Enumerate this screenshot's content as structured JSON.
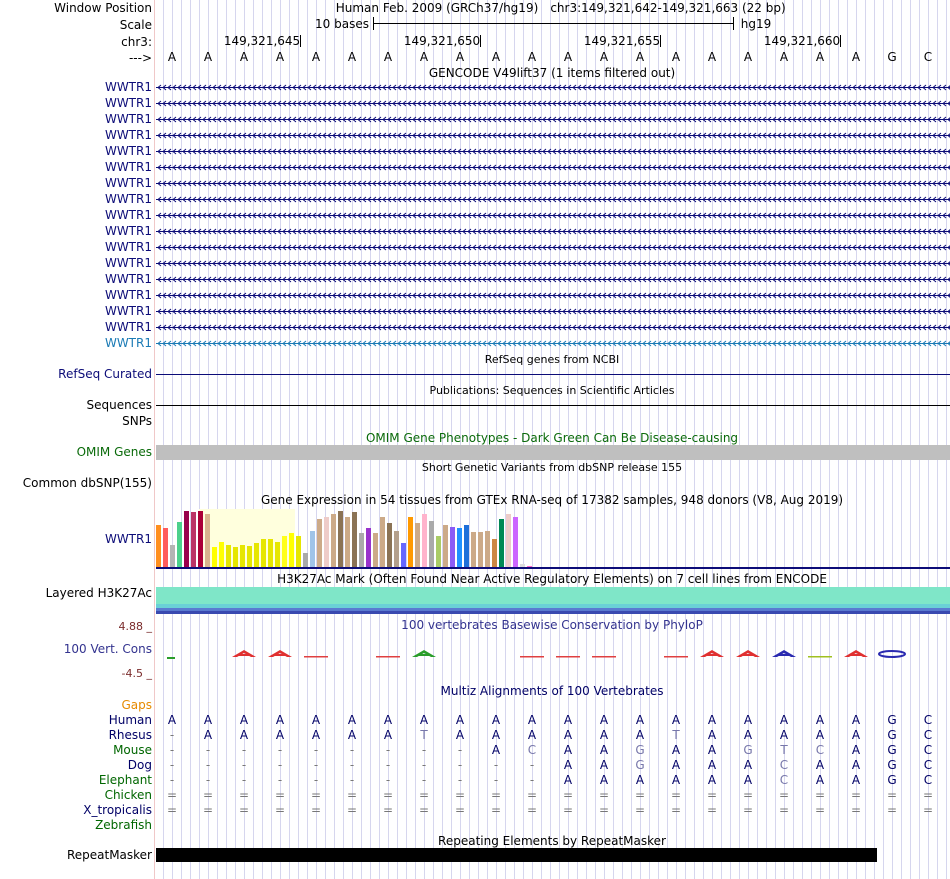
{
  "header": {
    "window_position_label": "Window Position",
    "scale_label": "Scale",
    "chrom_label": "chr3:",
    "strand_label": "--->",
    "assembly": "Human Feb. 2009 (GRCh37/hg19)",
    "position": "chr3:149,321,642-149,321,663 (22 bp)",
    "scale_text": "10 bases",
    "scale_db": "hg19",
    "coords": [
      "149,321,645",
      "149,321,650",
      "149,321,655",
      "149,321,660"
    ]
  },
  "bases": [
    "A",
    "A",
    "A",
    "A",
    "A",
    "A",
    "A",
    "A",
    "A",
    "A",
    "A",
    "A",
    "A",
    "A",
    "A",
    "A",
    "A",
    "A",
    "A",
    "A",
    "G",
    "C"
  ],
  "gencode": {
    "title": "GENCODE V49lift37 (1 items filtered out)",
    "gene": "WWTR1",
    "rows": 17,
    "row_color": "#0c0c78",
    "highlight_color": "#1a7ab5"
  },
  "refseq": {
    "title": "RefSeq genes from NCBI",
    "label": "RefSeq Curated",
    "color": "#0c0c78"
  },
  "pubs": {
    "title": "Publications: Sequences in Scientific Articles",
    "label1": "Sequences",
    "label2": "SNPs"
  },
  "omim": {
    "title": "OMIM Gene Phenotypes - Dark Green Can Be Disease-causing",
    "label": "OMIM Genes",
    "color": "#0a6a0a"
  },
  "dbsnp": {
    "title": "Short Genetic Variants from dbSNP release 155",
    "label": "Common dbSNP(155)"
  },
  "gtex": {
    "title": "Gene Expression in 54 tissues from GTEx RNA-seq of 17382 samples, 948 donors (V8, Aug 2019)",
    "label": "WWTR1",
    "bar_colors": [
      "#ff8f1e",
      "#ff5c5c",
      "#b4b4b4",
      "#4cd08c",
      "#99004c",
      "#bb3366",
      "#ab0037",
      "#d9b48d",
      "#ffff00",
      "#ffff00",
      "#e6e600",
      "#e6e600",
      "#e6e600",
      "#e6e600",
      "#e6e600",
      "#e6e600",
      "#e6e600",
      "#e6e600",
      "#ffff1a",
      "#ffff00",
      "#e6e600",
      "#aaaaaa",
      "#a0c4e8",
      "#ccaa88",
      "#eeccc9",
      "#ccaa88",
      "#8b7355",
      "#ccaa88",
      "#8b7355",
      "#aaaaaa",
      "#9933cc",
      "#ccaa88",
      "#ccaa88",
      "#8b7355",
      "#b4a08c",
      "#6666ff",
      "#ff9900",
      "#ccaa88",
      "#ffb3cc",
      "#aaaaaa",
      "#aacc66",
      "#ccaa88",
      "#8b5cf6",
      "#1e90ff",
      "#1e6fd9",
      "#ccaa88",
      "#ccaa88",
      "#ccaa88",
      "#cc8844",
      "#008855",
      "#eeccc9",
      "#cc66ff",
      "#dddddd",
      "#ff66cc"
    ],
    "bar_values": [
      0.75,
      0.7,
      0.4,
      0.8,
      1.0,
      0.98,
      1.0,
      0.95,
      0.35,
      0.45,
      0.4,
      0.35,
      0.4,
      0.38,
      0.42,
      0.5,
      0.5,
      0.45,
      0.55,
      0.6,
      0.55,
      0.25,
      0.65,
      0.85,
      0.9,
      0.95,
      1.0,
      0.9,
      0.98,
      0.6,
      0.7,
      0.6,
      0.9,
      0.78,
      0.65,
      0.42,
      0.9,
      0.78,
      0.95,
      0.82,
      0.55,
      0.75,
      0.72,
      0.7,
      0.75,
      0.62,
      0.62,
      0.65,
      0.5,
      0.85,
      0.95,
      0.9,
      0.05,
      0.02
    ]
  },
  "h3k27ac": {
    "title": "H3K27Ac Mark (Often Found Near Active Regulatory Elements) on 7 cell lines from ENCODE",
    "label": "Layered H3K27Ac",
    "colors": [
      "#7fe6c8",
      "#6ad0d6",
      "#5a7ad0",
      "#3a4ab0"
    ]
  },
  "conservation": {
    "title": "100 vertebrates Basewise Conservation by PhyloP",
    "label": "100 Vert. Cons",
    "ymax": "4.88 _",
    "ymin": "-4.5 _",
    "title_color": "#33338f"
  },
  "multiz": {
    "title": "Multiz Alignments of 100 Vertebrates",
    "gaps_label": "Gaps",
    "species": [
      {
        "name": "Human",
        "color": "#000066",
        "seq": [
          "A",
          "A",
          "A",
          "A",
          "A",
          "A",
          "A",
          "A",
          "A",
          "A",
          "A",
          "A",
          "A",
          "A",
          "A",
          "A",
          "A",
          "A",
          "A",
          "A",
          "G",
          "C"
        ]
      },
      {
        "name": "Rhesus",
        "color": "#000066",
        "seq": [
          "-",
          "A",
          "A",
          "A",
          "A",
          "A",
          "A",
          "T",
          "A",
          "A",
          "A",
          "A",
          "A",
          "A",
          "T",
          "A",
          "A",
          "A",
          "A",
          "A",
          "G",
          "C"
        ]
      },
      {
        "name": "Mouse",
        "color": "#006600",
        "seq": [
          "-",
          "-",
          "-",
          "-",
          "-",
          "-",
          "-",
          "-",
          "-",
          "A",
          "C",
          "A",
          "A",
          "G",
          "A",
          "A",
          "G",
          "T",
          "C",
          "A",
          "G",
          "C"
        ]
      },
      {
        "name": "Dog",
        "color": "#000066",
        "seq": [
          "-",
          "-",
          "-",
          "-",
          "-",
          "-",
          "-",
          "-",
          "-",
          "-",
          "-",
          "A",
          "A",
          "G",
          "A",
          "A",
          "A",
          "C",
          "A",
          "A",
          "G",
          "C"
        ]
      },
      {
        "name": "Elephant",
        "color": "#006600",
        "seq": [
          "-",
          "-",
          "-",
          "-",
          "-",
          "-",
          "-",
          "-",
          "-",
          "-",
          "-",
          "A",
          "A",
          "A",
          "A",
          "A",
          "A",
          "C",
          "A",
          "A",
          "G",
          "C"
        ]
      },
      {
        "name": "Chicken",
        "color": "#006600",
        "seq": [
          "=",
          "=",
          "=",
          "=",
          "=",
          "=",
          "=",
          "=",
          "=",
          "=",
          "=",
          "=",
          "=",
          "=",
          "=",
          "=",
          "=",
          "=",
          "=",
          "=",
          "=",
          "="
        ]
      },
      {
        "name": "X_tropicalis",
        "color": "#000066",
        "seq": [
          "=",
          "=",
          "=",
          "=",
          "=",
          "=",
          "=",
          "=",
          "=",
          "=",
          "=",
          "=",
          "=",
          "=",
          "=",
          "=",
          "=",
          "=",
          "=",
          "=",
          "=",
          "="
        ]
      },
      {
        "name": "Zebrafish",
        "color": "#006600",
        "seq": []
      }
    ]
  },
  "repeatmasker": {
    "title": "Repeating Elements by RepeatMasker",
    "label": "RepeatMasker"
  },
  "colors": {
    "grid": "#d6d6ee",
    "divider": "#f0c8c8",
    "gaps_label": "#e68a00"
  }
}
